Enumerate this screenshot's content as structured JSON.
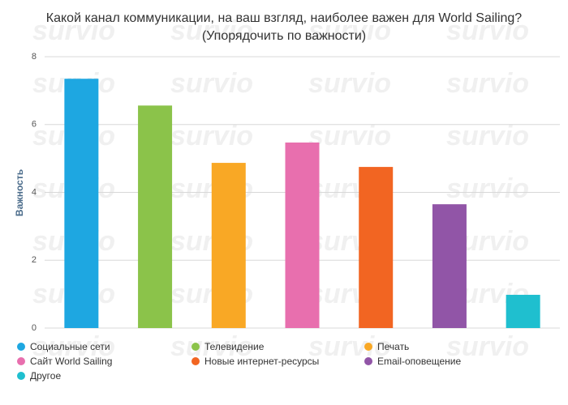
{
  "chart_data": {
    "type": "bar",
    "title": "Какой канал коммуникации, на ваш взгляд, наиболее важен для World Sailing?",
    "subtitle": "(Упорядочить по важности)",
    "y_label": "Важность",
    "watermark": "survio",
    "categories": [
      "Социальные сети",
      "Телевидение",
      "Печать",
      "Сайт World Sailing",
      "Новые интернет-ресурсы",
      "Email-оповещение",
      "Другое"
    ],
    "values": [
      7.35,
      6.56,
      4.87,
      5.47,
      4.75,
      3.65,
      0.98
    ],
    "colors": [
      "#1ea7e1",
      "#8bc34a",
      "#f9a825",
      "#e86fae",
      "#f26522",
      "#9155a7",
      "#1fbfcf"
    ],
    "ylim": [
      0,
      8
    ],
    "yticks": [
      0,
      2,
      4,
      6,
      8
    ],
    "grid": true
  }
}
